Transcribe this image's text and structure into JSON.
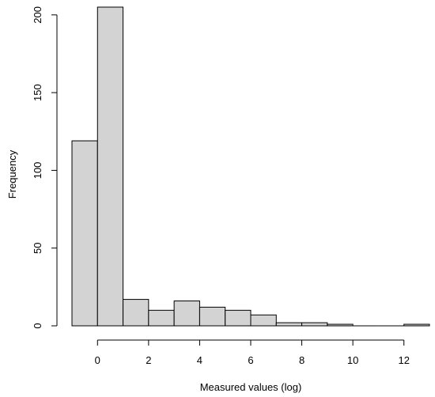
{
  "chart_data": {
    "type": "bar",
    "title": "",
    "xlabel": "Measured values (log)",
    "ylabel": "Frequency",
    "bins": [
      {
        "start": -1,
        "end": 0,
        "count": 119
      },
      {
        "start": 0,
        "end": 1,
        "count": 205
      },
      {
        "start": 1,
        "end": 2,
        "count": 17
      },
      {
        "start": 2,
        "end": 3,
        "count": 10
      },
      {
        "start": 3,
        "end": 4,
        "count": 16
      },
      {
        "start": 4,
        "end": 5,
        "count": 12
      },
      {
        "start": 5,
        "end": 6,
        "count": 10
      },
      {
        "start": 6,
        "end": 7,
        "count": 7
      },
      {
        "start": 7,
        "end": 8,
        "count": 2
      },
      {
        "start": 8,
        "end": 9,
        "count": 2
      },
      {
        "start": 9,
        "end": 10,
        "count": 1
      },
      {
        "start": 10,
        "end": 11,
        "count": 0
      },
      {
        "start": 11,
        "end": 12,
        "count": 0
      },
      {
        "start": 12,
        "end": 13,
        "count": 1
      }
    ],
    "x_ticks": [
      0,
      2,
      4,
      6,
      8,
      10,
      12
    ],
    "y_ticks": [
      0,
      50,
      100,
      150,
      200
    ],
    "xlim": [
      -1,
      13
    ],
    "ylim": [
      0,
      205
    ],
    "bar_color": "#d3d3d3",
    "edge_color": "#000000",
    "grid": false
  }
}
